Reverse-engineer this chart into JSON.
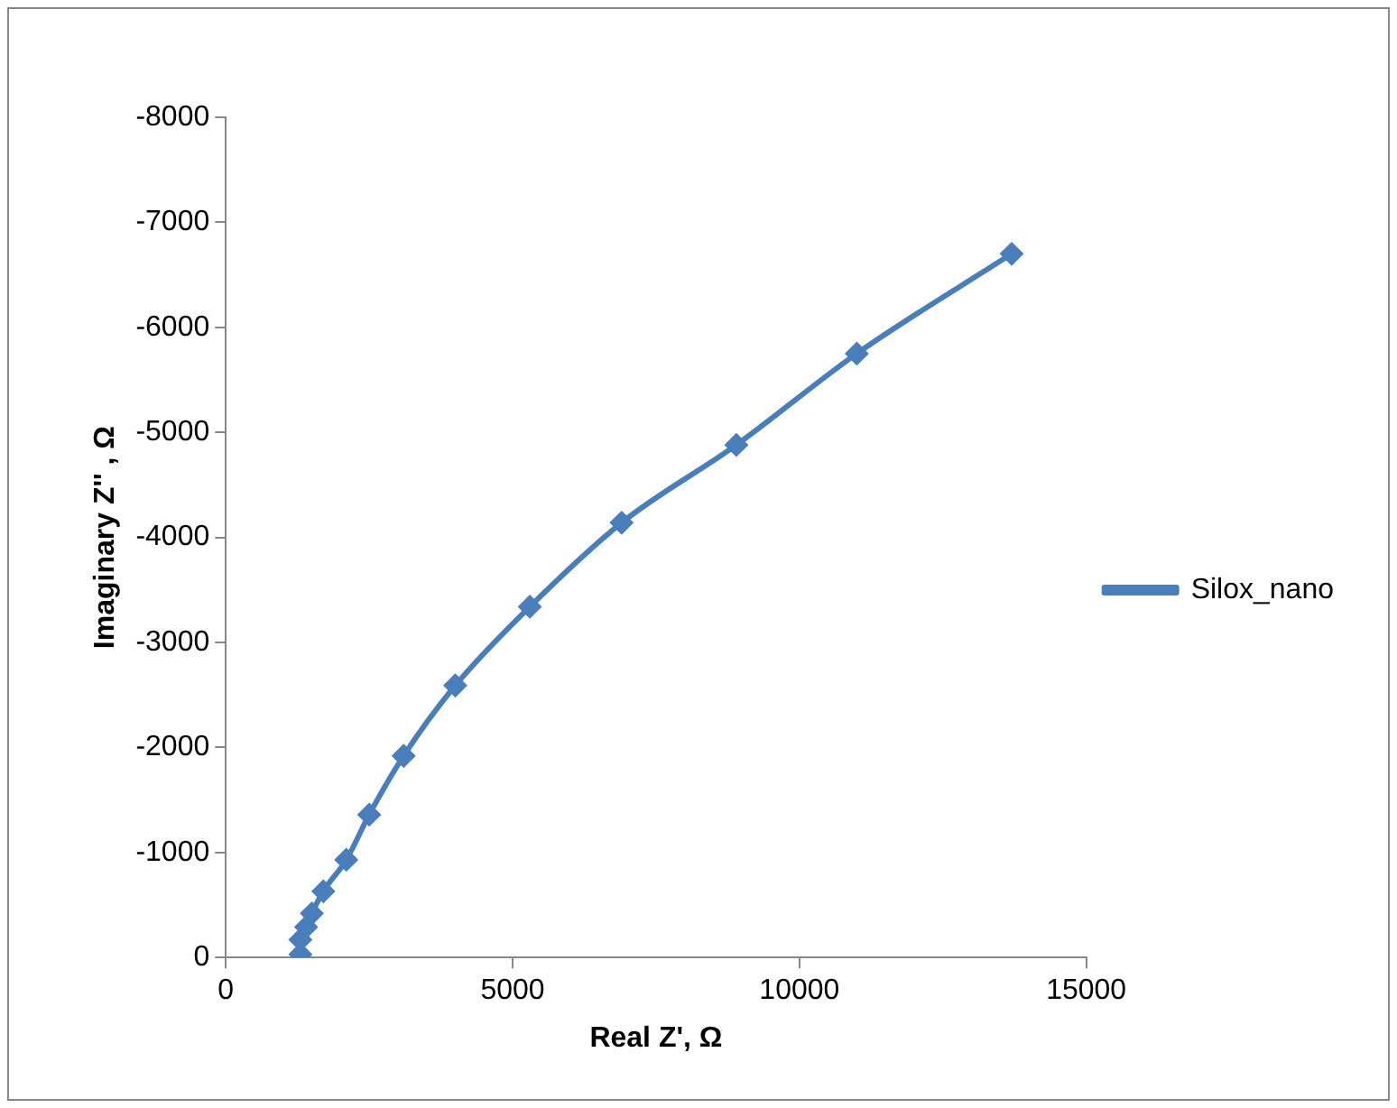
{
  "chart_data": {
    "type": "line",
    "xlabel": "Real Z', Ω",
    "ylabel": "Imaginary Z'' , Ω",
    "x": [
      1300,
      1300,
      1400,
      1500,
      1700,
      2100,
      2500,
      3100,
      4000,
      5300,
      6900,
      8900,
      11000,
      13700
    ],
    "series": [
      {
        "name": "Silox_nano",
        "color": "#4a7ebb",
        "values": [
          -30,
          -170,
          -290,
          -420,
          -630,
          -930,
          -1360,
          -1920,
          -2590,
          -3340,
          -4140,
          -4880,
          -5750,
          -6700
        ]
      }
    ],
    "xlim": [
      0,
      15000
    ],
    "xticks": [
      0,
      5000,
      10000,
      15000
    ],
    "ylim": [
      0,
      -8000
    ],
    "yticks": [
      0,
      -1000,
      -2000,
      -3000,
      -4000,
      -5000,
      -6000,
      -7000,
      -8000
    ],
    "grid": false,
    "legend": "right",
    "marker": "diamond",
    "line_style": "solid"
  }
}
